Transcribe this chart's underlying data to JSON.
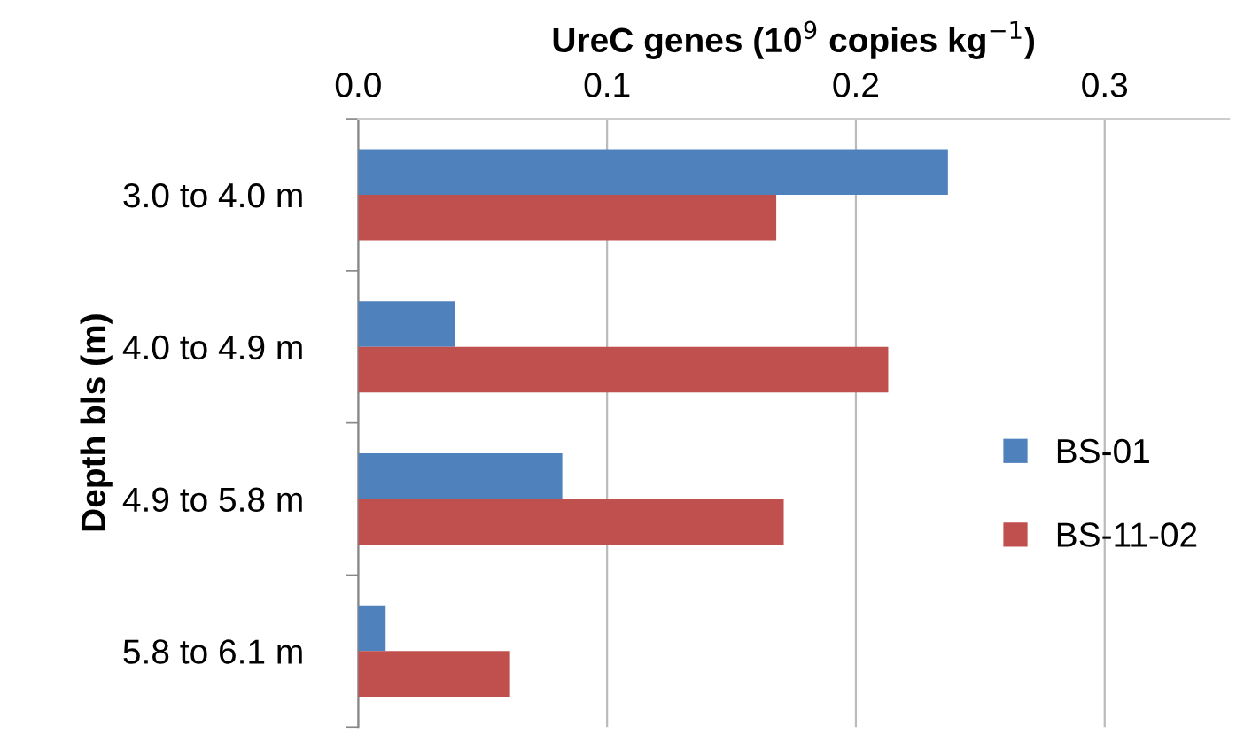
{
  "chart_data": {
    "type": "bar",
    "orientation": "horizontal",
    "xlabel": "UreC genes (10$^{9}$ copies kg$^{−1}$)",
    "ylabel": "Depth bls (m)",
    "categories": [
      "3.0 to 4.0 m",
      "4.0 to 4.9 m",
      "4.9 to 5.8 m",
      "5.8 to 6.1 m"
    ],
    "series": [
      {
        "name": "BS-01",
        "color": "#4f81bd",
        "values": [
          0.237,
          0.039,
          0.082,
          0.011
        ]
      },
      {
        "name": "BS-11-02",
        "color": "#c0504d",
        "values": [
          0.168,
          0.213,
          0.171,
          0.061
        ]
      }
    ],
    "xlim": [
      0,
      0.35
    ],
    "xticks": [
      {
        "value": 0,
        "label": "0.0"
      },
      0.1,
      0.2,
      0.3
    ],
    "grid": "x",
    "legend": "right"
  }
}
